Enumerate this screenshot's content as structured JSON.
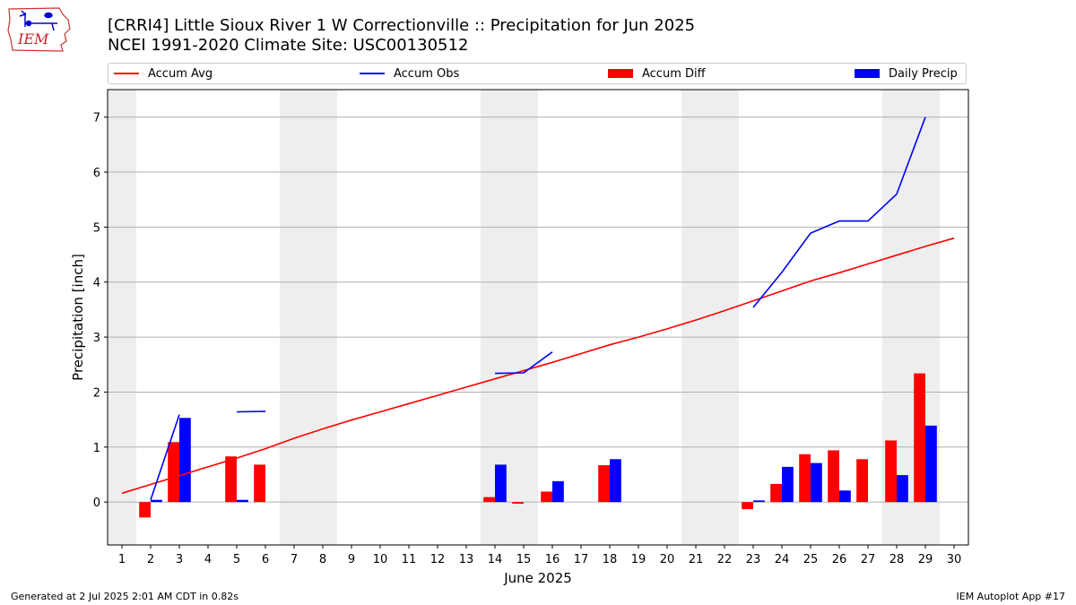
{
  "header": {
    "title_line1": "[CRRI4] Little Sioux River 1 W Correctionville :: Precipitation for Jun 2025",
    "title_line2": "NCEI 1991-2020 Climate Site: USC00130512",
    "logo_text": "IEM"
  },
  "legend": {
    "accum_avg": "Accum Avg",
    "accum_obs": "Accum Obs",
    "accum_diff": "Accum Diff",
    "daily_precip": "Daily Precip"
  },
  "colors": {
    "avg": "#ff0000",
    "obs": "#0000ff",
    "diff": "#ff0000",
    "daily": "#0000ff",
    "weekend_shade": "#eeeeee",
    "grid": "#b0b0b0"
  },
  "footer": {
    "left": "Generated at 2 Jul 2025 2:01 AM CDT in 0.82s",
    "right": "IEM Autoplot App #17"
  },
  "chart_data": {
    "type": "bar",
    "xlabel": "June 2025",
    "ylabel": "Precipitation [inch]",
    "xlim": [
      0.5,
      30.5
    ],
    "ylim": [
      -0.78,
      7.5
    ],
    "yticks": [
      0,
      1,
      2,
      3,
      4,
      5,
      6,
      7
    ],
    "xticks": [
      1,
      2,
      3,
      4,
      5,
      6,
      7,
      8,
      9,
      10,
      11,
      12,
      13,
      14,
      15,
      16,
      17,
      18,
      19,
      20,
      21,
      22,
      23,
      24,
      25,
      26,
      27,
      28,
      29,
      30
    ],
    "grid": "horizontal",
    "legend_position": "top",
    "weekend_days": [
      1,
      7,
      8,
      14,
      15,
      21,
      22,
      28,
      29
    ],
    "series": [
      {
        "name": "Accum Avg",
        "kind": "line",
        "x": [
          1,
          2,
          3,
          4,
          5,
          6,
          7,
          8,
          9,
          10,
          11,
          12,
          13,
          14,
          15,
          16,
          17,
          18,
          19,
          20,
          21,
          22,
          23,
          24,
          25,
          26,
          27,
          28,
          29,
          30
        ],
        "values": [
          0.16,
          0.32,
          0.48,
          0.64,
          0.8,
          0.97,
          1.16,
          1.33,
          1.49,
          1.64,
          1.79,
          1.94,
          2.09,
          2.24,
          2.39,
          2.54,
          2.7,
          2.86,
          3.0,
          3.15,
          3.31,
          3.48,
          3.66,
          3.84,
          4.02,
          4.17,
          4.33,
          4.49,
          4.65,
          4.8
        ]
      },
      {
        "name": "Accum Obs",
        "kind": "line",
        "x": [
          1,
          2,
          3,
          4,
          5,
          6,
          7,
          8,
          9,
          10,
          11,
          12,
          13,
          14,
          15,
          16,
          17,
          18,
          19,
          20,
          21,
          22,
          23,
          24,
          25,
          26,
          27,
          28,
          29,
          30
        ],
        "values": [
          null,
          0.04,
          1.59,
          null,
          1.64,
          1.65,
          null,
          null,
          null,
          null,
          null,
          null,
          null,
          2.34,
          2.35,
          2.73,
          null,
          null,
          null,
          null,
          null,
          null,
          3.54,
          4.18,
          4.89,
          5.11,
          5.11,
          5.6,
          7.0,
          null
        ]
      },
      {
        "name": "Accum Diff",
        "kind": "bar",
        "x": [
          2,
          3,
          5,
          6,
          14,
          15,
          16,
          18,
          23,
          24,
          25,
          26,
          27,
          28,
          29
        ],
        "values": [
          -0.28,
          1.09,
          0.83,
          0.68,
          0.09,
          -0.03,
          0.19,
          0.67,
          -0.13,
          0.33,
          0.87,
          0.94,
          0.78,
          1.12,
          2.34
        ]
      },
      {
        "name": "Daily Precip",
        "kind": "bar",
        "x": [
          2,
          3,
          5,
          14,
          16,
          18,
          23,
          24,
          25,
          26,
          28,
          29
        ],
        "values": [
          0.04,
          1.53,
          0.04,
          0.68,
          0.38,
          0.78,
          0.03,
          0.64,
          0.71,
          0.21,
          0.49,
          1.39
        ]
      }
    ]
  }
}
